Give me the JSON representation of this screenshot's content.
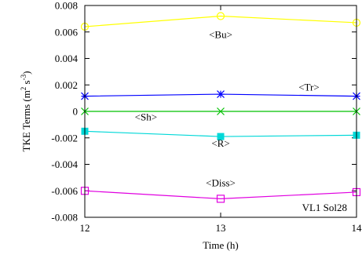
{
  "chart_data": {
    "type": "line",
    "x": [
      12,
      13,
      14
    ],
    "xlim": [
      12,
      14
    ],
    "ylim": [
      -0.008,
      0.008
    ],
    "xticks": [
      "12",
      "13",
      "14"
    ],
    "yticks": [
      "0.008",
      "0.006",
      "0.004",
      "0.002",
      "0",
      "-0.002",
      "-0.004",
      "-0.006",
      "-0.008"
    ],
    "ytick_values": [
      0.008,
      0.006,
      0.004,
      0.002,
      0,
      -0.002,
      -0.004,
      -0.006,
      -0.008
    ],
    "xlabel": "Time (h)",
    "ylabel": {
      "prefix": "TKE Terms (m",
      "exp1": "2",
      "mid": " s",
      "exp2": "-3",
      "suffix": ")"
    },
    "annotation": "VL1 Sol28",
    "grid": false,
    "series": [
      {
        "name": "<Bu>",
        "values": [
          0.0064,
          0.0072,
          0.0067
        ],
        "color": "#ffff00",
        "marker": "circle",
        "label_at": [
          13,
          0.0058
        ]
      },
      {
        "name": "<Tr>",
        "values": [
          0.00115,
          0.0013,
          0.00115
        ],
        "color": "#0000ff",
        "marker": "star",
        "label_at": [
          13.65,
          0.00185
        ]
      },
      {
        "name": "<Sh>",
        "values": [
          0.0,
          0.0,
          0.0
        ],
        "color": "#00c000",
        "marker": "cross",
        "label_at": [
          12.45,
          -0.0004
        ]
      },
      {
        "name": "<R>",
        "values": [
          -0.0015,
          -0.0019,
          -0.0018
        ],
        "color": "#00d8d8",
        "marker": "filled-square",
        "label_at": [
          13,
          -0.0024
        ]
      },
      {
        "name": "<Diss>",
        "values": [
          -0.006,
          -0.0066,
          -0.0061
        ],
        "color": "#e000e0",
        "marker": "open-square",
        "label_at": [
          13,
          -0.0054
        ]
      }
    ]
  }
}
